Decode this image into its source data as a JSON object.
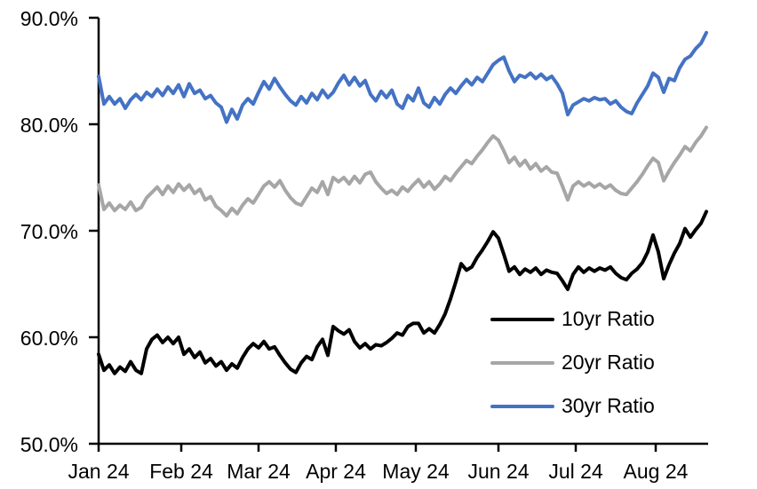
{
  "chart_data": {
    "type": "line",
    "title": "",
    "grid": false,
    "legend_position": "inside lower right",
    "x_unit": "days from start of Jan 2024 (daily series)",
    "y_axis": {
      "min": 50,
      "max": 90,
      "tick_step": 10,
      "ticks": [
        {
          "value": 90,
          "label": "90.0%"
        },
        {
          "value": 80,
          "label": "80.0%"
        },
        {
          "value": 70,
          "label": "70.0%"
        },
        {
          "value": 60,
          "label": "60.0%"
        },
        {
          "value": 50,
          "label": "50.0%"
        }
      ]
    },
    "x_axis": {
      "ticks": [
        {
          "day": 0,
          "label": "Jan 24"
        },
        {
          "day": 31,
          "label": "Feb 24"
        },
        {
          "day": 60,
          "label": "Mar 24"
        },
        {
          "day": 89,
          "label": "Apr 24"
        },
        {
          "day": 119,
          "label": "May 24"
        },
        {
          "day": 150,
          "label": "Jun 24"
        },
        {
          "day": 179,
          "label": "Jul 24"
        },
        {
          "day": 209,
          "label": "Aug 24"
        }
      ]
    },
    "x": [
      0,
      2,
      4,
      6,
      8,
      10,
      12,
      14,
      16,
      18,
      20,
      22,
      24,
      26,
      28,
      30,
      32,
      34,
      36,
      38,
      40,
      42,
      44,
      46,
      48,
      50,
      52,
      54,
      56,
      58,
      60,
      62,
      64,
      66,
      68,
      70,
      72,
      74,
      76,
      78,
      80,
      82,
      84,
      86,
      88,
      90,
      92,
      94,
      96,
      98,
      100,
      102,
      104,
      106,
      108,
      110,
      112,
      114,
      116,
      118,
      120,
      122,
      124,
      126,
      128,
      130,
      132,
      134,
      136,
      138,
      140,
      142,
      144,
      146,
      148,
      150,
      152,
      154,
      156,
      158,
      160,
      162,
      164,
      166,
      168,
      170,
      172,
      174,
      176,
      178,
      180,
      182,
      184,
      186,
      188,
      190,
      192,
      194,
      196,
      198,
      200,
      202,
      204,
      206,
      208,
      210,
      212,
      214,
      216,
      218,
      220,
      222,
      224,
      226,
      228
    ],
    "series": [
      {
        "name": "10yr Ratio",
        "color": "#000000",
        "stroke_width": 4,
        "values": [
          58.4,
          56.9,
          57.4,
          56.6,
          57.2,
          56.8,
          57.7,
          56.9,
          56.6,
          58.9,
          59.8,
          60.2,
          59.5,
          60.0,
          59.4,
          60.0,
          58.4,
          58.9,
          58.1,
          58.6,
          57.6,
          58.0,
          57.3,
          57.7,
          56.9,
          57.5,
          57.1,
          58.1,
          58.9,
          59.4,
          59.0,
          59.6,
          58.9,
          59.1,
          58.3,
          57.6,
          57.0,
          56.7,
          57.6,
          58.2,
          57.9,
          59.1,
          59.8,
          58.3,
          61.0,
          60.6,
          60.3,
          60.7,
          59.6,
          59.0,
          59.4,
          58.9,
          59.3,
          59.2,
          59.5,
          59.9,
          60.4,
          60.2,
          61.0,
          61.3,
          61.3,
          60.4,
          60.8,
          60.4,
          61.2,
          62.2,
          63.6,
          65.2,
          66.9,
          66.3,
          66.6,
          67.5,
          68.2,
          69.0,
          69.9,
          69.3,
          67.8,
          66.2,
          66.6,
          65.9,
          66.4,
          66.1,
          66.5,
          65.9,
          66.3,
          66.1,
          66.0,
          65.3,
          64.5,
          65.9,
          66.6,
          66.1,
          66.5,
          66.2,
          66.5,
          66.3,
          66.6,
          66.0,
          65.6,
          65.4,
          66.0,
          66.4,
          67.0,
          68.0,
          69.6,
          68.0,
          65.5,
          66.8,
          67.9,
          68.8,
          70.2,
          69.4,
          70.1,
          70.7,
          71.8
        ]
      },
      {
        "name": "20yr Ratio",
        "color": "#A6A6A6",
        "stroke_width": 4,
        "values": [
          74.3,
          72.0,
          72.6,
          71.9,
          72.4,
          72.0,
          72.7,
          71.9,
          72.2,
          73.1,
          73.6,
          74.1,
          73.4,
          74.2,
          73.6,
          74.4,
          73.8,
          74.3,
          73.5,
          73.9,
          72.9,
          73.2,
          72.3,
          71.9,
          71.4,
          72.1,
          71.6,
          72.4,
          73.0,
          72.6,
          73.4,
          74.2,
          74.6,
          74.1,
          74.7,
          73.8,
          73.1,
          72.6,
          72.4,
          73.2,
          74.0,
          73.6,
          74.6,
          73.4,
          75.0,
          74.6,
          75.0,
          74.4,
          75.1,
          74.5,
          75.3,
          75.5,
          74.6,
          74.0,
          73.5,
          73.8,
          73.4,
          74.1,
          73.7,
          74.3,
          74.8,
          74.1,
          74.6,
          73.9,
          74.4,
          75.1,
          74.7,
          75.4,
          76.0,
          76.6,
          76.3,
          77.0,
          77.6,
          78.3,
          78.9,
          78.5,
          77.5,
          76.4,
          76.9,
          76.1,
          76.6,
          75.8,
          76.3,
          75.6,
          76.0,
          75.5,
          75.4,
          74.2,
          72.9,
          74.2,
          74.6,
          74.2,
          74.5,
          74.1,
          74.4,
          74.0,
          74.3,
          73.8,
          73.5,
          73.4,
          74.0,
          74.6,
          75.3,
          76.1,
          76.8,
          76.4,
          74.7,
          75.6,
          76.4,
          77.1,
          77.9,
          77.5,
          78.3,
          78.9,
          79.7
        ]
      },
      {
        "name": "30yr Ratio",
        "color": "#4472C4",
        "stroke_width": 4,
        "values": [
          84.5,
          81.9,
          82.6,
          81.9,
          82.4,
          81.5,
          82.3,
          82.8,
          82.3,
          83.0,
          82.6,
          83.3,
          82.7,
          83.5,
          82.9,
          83.7,
          82.6,
          83.8,
          82.9,
          83.2,
          82.4,
          82.7,
          82.0,
          81.6,
          80.2,
          81.4,
          80.5,
          81.8,
          82.4,
          81.9,
          83.0,
          84.0,
          83.3,
          84.3,
          83.5,
          82.8,
          82.2,
          81.8,
          82.6,
          82.0,
          82.9,
          82.3,
          83.2,
          82.5,
          83.0,
          83.9,
          84.6,
          83.7,
          84.4,
          83.6,
          84.1,
          82.8,
          82.2,
          83.1,
          82.5,
          83.2,
          81.9,
          81.5,
          82.7,
          82.2,
          83.4,
          82.0,
          81.6,
          82.5,
          81.9,
          82.8,
          83.4,
          82.9,
          83.6,
          84.2,
          83.7,
          84.4,
          84.0,
          84.8,
          85.6,
          86.0,
          86.3,
          85.0,
          84.0,
          84.6,
          84.4,
          84.8,
          84.3,
          84.7,
          84.2,
          84.5,
          83.8,
          82.9,
          80.9,
          81.8,
          82.1,
          82.4,
          82.2,
          82.5,
          82.3,
          82.4,
          81.9,
          82.2,
          81.6,
          81.2,
          81.0,
          82.0,
          82.8,
          83.6,
          84.8,
          84.4,
          83.0,
          84.3,
          84.1,
          85.3,
          86.1,
          86.4,
          87.1,
          87.6,
          88.6
        ]
      }
    ]
  }
}
